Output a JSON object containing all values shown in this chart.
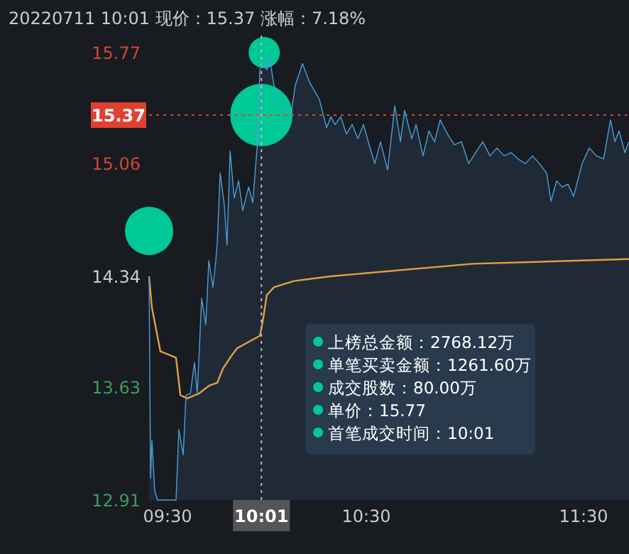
{
  "chart_data": {
    "type": "line",
    "title": "20220711 10:01 现价：15.37 涨幅：7.18%",
    "xlim": [
      9.5,
      11.709
    ],
    "ylim": [
      12.91,
      15.77
    ],
    "xticks": [
      {
        "value": 9.5,
        "label": "09:30"
      },
      {
        "value": 10.5,
        "label": "10:30"
      },
      {
        "value": 11.5,
        "label": "11:30"
      }
    ],
    "yticks": [
      12.91,
      13.63,
      14.34,
      15.06,
      15.37,
      15.77
    ],
    "grid": false,
    "ref_lines": [
      {
        "axis": "y",
        "value": 15.37,
        "label": "15.37",
        "color": "#e04030",
        "line_style": "dotted"
      },
      {
        "axis": "x",
        "value": 10.017,
        "label": "10:01",
        "color": "#bbbbbb",
        "line_style": "dotted"
      }
    ],
    "annotations": [
      "上榜总金额：2768.12万",
      "单笔买卖金额：1261.60万",
      "成交股数：80.00万",
      "单价：15.77",
      "首笔成交时间：10:01"
    ],
    "series": [
      {
        "type": "area",
        "color": "#4a9fd8",
        "x": [
          9.5,
          9.507,
          9.513,
          9.526,
          9.539,
          9.624,
          9.637,
          9.657,
          9.67,
          9.69,
          9.709,
          9.722,
          9.742,
          9.761,
          9.775,
          9.794,
          9.807,
          9.814,
          9.827,
          9.846,
          9.859,
          9.873,
          9.892,
          9.912,
          9.931,
          9.958,
          9.977,
          9.997,
          10.01,
          10.023,
          10.042,
          10.056,
          10.075,
          10.095,
          10.121,
          10.154,
          10.173,
          10.206,
          10.239,
          10.284,
          10.317,
          10.337,
          10.356,
          10.382,
          10.408,
          10.435,
          10.461,
          10.487,
          10.513,
          10.539,
          10.565,
          10.598,
          10.631,
          10.657,
          10.676,
          10.709,
          10.729,
          10.761,
          10.788,
          10.814,
          10.84,
          10.873,
          10.905,
          10.938,
          10.971,
          11.003,
          11.036,
          11.069,
          11.101,
          11.134,
          11.167,
          11.199,
          11.232,
          11.265,
          11.297,
          11.33,
          11.35,
          11.376,
          11.402,
          11.428,
          11.454,
          11.493,
          11.526,
          11.559,
          11.592,
          11.624,
          11.644,
          11.663,
          11.69,
          11.709
        ],
        "values": [
          14.34,
          13.05,
          13.29,
          12.97,
          12.91,
          12.91,
          13.36,
          13.2,
          13.58,
          13.59,
          13.79,
          13.59,
          14.2,
          14.03,
          14.44,
          14.27,
          14.44,
          14.56,
          15.0,
          14.8,
          14.54,
          15.14,
          14.84,
          14.95,
          14.76,
          14.91,
          14.81,
          15.16,
          15.66,
          15.71,
          15.66,
          15.73,
          15.56,
          15.47,
          15.4,
          15.38,
          15.56,
          15.7,
          15.58,
          15.47,
          15.29,
          15.36,
          15.31,
          15.36,
          15.25,
          15.31,
          15.22,
          15.31,
          15.18,
          15.06,
          15.2,
          15.02,
          15.43,
          15.2,
          15.4,
          15.22,
          15.31,
          15.11,
          15.27,
          15.2,
          15.34,
          15.25,
          15.18,
          15.2,
          15.06,
          15.13,
          15.2,
          15.11,
          15.16,
          15.11,
          15.13,
          15.09,
          15.06,
          15.11,
          15.06,
          15.0,
          14.82,
          14.95,
          14.91,
          14.93,
          14.85,
          15.06,
          15.16,
          15.11,
          15.09,
          15.34,
          15.2,
          15.27,
          15.13,
          15.2
        ]
      },
      {
        "color": "#e0a040",
        "x": [
          9.5,
          9.513,
          9.552,
          9.624,
          9.644,
          9.676,
          9.729,
          9.775,
          9.814,
          9.84,
          9.873,
          9.905,
          9.944,
          10.01,
          10.023,
          10.042,
          10.075,
          10.167,
          10.337,
          10.99,
          11.709
        ],
        "values": [
          14.34,
          14.14,
          13.86,
          13.82,
          13.58,
          13.56,
          13.59,
          13.64,
          13.66,
          13.75,
          13.82,
          13.88,
          13.91,
          13.96,
          14.05,
          14.22,
          14.27,
          14.31,
          14.34,
          14.42,
          14.45
        ]
      },
      {
        "type": "bubble",
        "color": "#00c896",
        "x": [
          9.5,
          10.017,
          10.03
        ],
        "values": [
          14.63,
          15.37,
          15.77
        ],
        "sizes": [
          0.6,
          1,
          0.25
        ]
      }
    ]
  }
}
